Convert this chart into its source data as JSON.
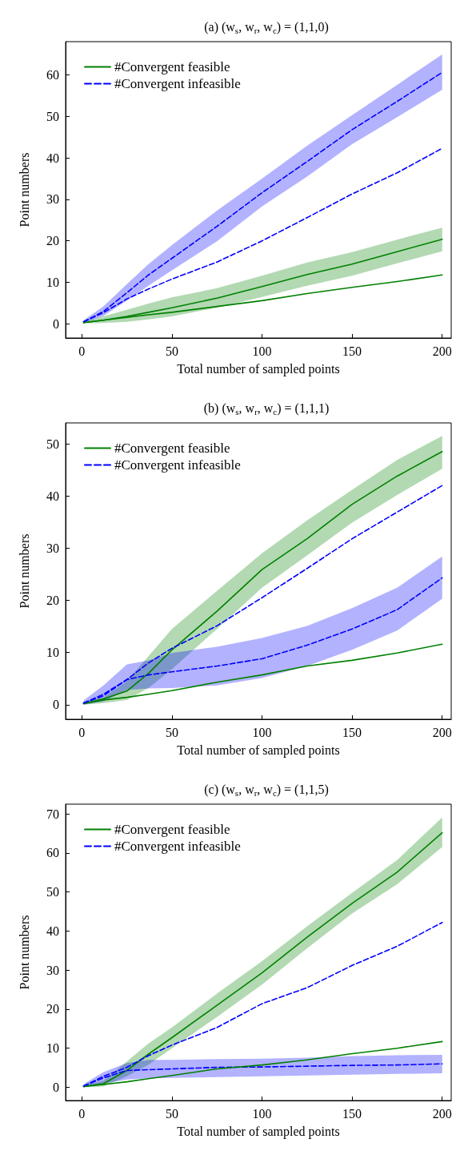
{
  "chart_data": [
    {
      "type": "line",
      "title": "(a) (w$_{s}$, w$_{r}$, w$_{c}$) = (1,1,0)",
      "xlabel": "Total number of sampled points",
      "ylabel": "Point numbers",
      "legend": "top left",
      "grid": false,
      "xlim": [
        -9,
        205
      ],
      "xticks": [
        0,
        50,
        100,
        150,
        200
      ],
      "ylim": [
        -3.4,
        68
      ],
      "yticks": [
        0,
        10,
        20,
        30,
        40,
        50,
        60
      ],
      "x": [
        1,
        12,
        25,
        37,
        50,
        75,
        100,
        125,
        150,
        175,
        200
      ],
      "series": [
        {
          "name": "#Convergent feasible",
          "color": "#008000",
          "line_style": "solid",
          "values": [
            0.3,
            0.9,
            1.8,
            2.8,
            3.9,
            6.2,
            9.0,
            11.9,
            14.4,
            17.4,
            20.4
          ],
          "lower": [
            0.1,
            0.2,
            0.5,
            1.1,
            1.8,
            3.9,
            6.5,
            9.2,
            11.6,
            14.6,
            17.5
          ],
          "upper": [
            0.6,
            1.8,
            3.4,
            4.9,
            6.4,
            8.6,
            11.6,
            14.8,
            17.3,
            20.3,
            23.2
          ]
        },
        {
          "name": "#Convergent infeasible",
          "color": "#0000ff",
          "line_style": "dashed",
          "values": [
            0.5,
            3.0,
            7.5,
            11.8,
            15.8,
            23.5,
            31.6,
            39.1,
            46.8,
            53.6,
            60.6
          ],
          "lower": [
            0.2,
            1.9,
            5.6,
            9.2,
            12.9,
            19.9,
            28.3,
            35.5,
            43.3,
            49.8,
            56.4
          ],
          "upper": [
            0.9,
            4.2,
            9.6,
            14.4,
            19.0,
            27.3,
            35.0,
            42.9,
            50.3,
            57.6,
            64.9
          ]
        },
        {
          "color": "#008000",
          "line_style": "solid",
          "values": [
            0.3,
            0.9,
            1.6,
            2.2,
            2.8,
            4.2,
            5.6,
            7.3,
            8.8,
            10.2,
            11.8
          ]
        },
        {
          "color": "#0000ff",
          "line_style": "dashed",
          "values": [
            0.5,
            2.7,
            6.0,
            8.4,
            10.8,
            14.9,
            20.0,
            25.6,
            31.3,
            36.4,
            42.3
          ]
        }
      ]
    },
    {
      "type": "line",
      "title": "(b) (w$_{s}$, w$_{r}$, w$_{c}$) = (1,1,1)",
      "xlabel": "Total number of sampled points",
      "ylabel": "Point numbers",
      "legend": "top left",
      "grid": false,
      "xlim": [
        -9,
        205
      ],
      "xticks": [
        0,
        50,
        100,
        150,
        200
      ],
      "ylim": [
        -2.8,
        54
      ],
      "yticks": [
        0,
        10,
        20,
        30,
        40,
        50
      ],
      "x": [
        1,
        12,
        25,
        37,
        50,
        75,
        100,
        125,
        150,
        175,
        200
      ],
      "series": [
        {
          "name": "#Convergent feasible",
          "color": "#008000",
          "line_style": "solid",
          "values": [
            0.2,
            1.1,
            2.6,
            6.0,
            10.5,
            17.9,
            25.9,
            31.8,
            38.4,
            43.8,
            48.5
          ],
          "lower": [
            0.0,
            0.3,
            0.9,
            3.2,
            6.8,
            14.5,
            22.4,
            28.6,
            34.9,
            40.2,
            45.2
          ],
          "upper": [
            0.5,
            1.4,
            4.5,
            9.3,
            14.5,
            21.8,
            29.0,
            35.3,
            41.2,
            46.9,
            51.5
          ]
        },
        {
          "name": "#Convergent infeasible",
          "color": "#0000ff",
          "line_style": "dashed",
          "values": [
            0.3,
            2.0,
            4.8,
            5.7,
            6.3,
            7.4,
            8.8,
            11.4,
            14.5,
            18.2,
            24.3
          ],
          "lower": [
            0.0,
            0.6,
            2.8,
            3.1,
            3.2,
            3.7,
            5.1,
            7.4,
            10.5,
            14.2,
            20.3
          ],
          "upper": [
            0.8,
            3.7,
            7.7,
            8.5,
            9.9,
            11.1,
            12.8,
            15.1,
            18.5,
            22.4,
            28.4
          ]
        },
        {
          "color": "#008000",
          "line_style": "solid",
          "values": [
            0.2,
            0.9,
            1.4,
            2.0,
            2.7,
            4.3,
            5.7,
            7.4,
            8.5,
            9.9,
            11.6
          ]
        },
        {
          "color": "#0000ff",
          "line_style": "dashed",
          "values": [
            0.3,
            1.7,
            4.8,
            8.0,
            10.8,
            15.1,
            20.5,
            26.1,
            31.8,
            36.9,
            42.0
          ]
        }
      ]
    },
    {
      "type": "line",
      "title": "(c) (w$_{s}$, w$_{r}$, w$_{c}$) = (1,1,5)",
      "xlabel": "Total number of sampled points",
      "ylabel": "Point numbers",
      "legend": "top left",
      "grid": false,
      "xlim": [
        -9,
        205
      ],
      "xticks": [
        0,
        50,
        100,
        150,
        200
      ],
      "ylim": [
        -3.4,
        72.5
      ],
      "yticks": [
        0,
        10,
        20,
        30,
        40,
        50,
        60,
        70
      ],
      "x": [
        1,
        12,
        25,
        37,
        50,
        75,
        100,
        125,
        150,
        175,
        200
      ],
      "series": [
        {
          "name": "#Convergent feasible",
          "color": "#008000",
          "line_style": "solid",
          "values": [
            0.2,
            0.9,
            4.3,
            8.5,
            12.7,
            21.0,
            29.3,
            38.4,
            47.1,
            55.1,
            65.2
          ],
          "lower": [
            0.0,
            0.2,
            2.8,
            5.8,
            10.0,
            18.0,
            26.3,
            35.6,
            44.5,
            52.0,
            61.5
          ],
          "upper": [
            0.5,
            1.7,
            6.6,
            11.2,
            15.3,
            24.0,
            32.3,
            41.2,
            49.8,
            58.2,
            69.1
          ]
        },
        {
          "name": "#Convergent infeasible",
          "color": "#0000ff",
          "line_style": "dashed",
          "values": [
            0.3,
            2.4,
            4.3,
            4.5,
            4.7,
            5.1,
            5.2,
            5.4,
            5.6,
            5.7,
            6.0
          ],
          "lower": [
            0.0,
            0.9,
            2.0,
            2.3,
            2.4,
            2.6,
            2.8,
            3.0,
            3.2,
            3.4,
            3.6
          ],
          "upper": [
            0.8,
            3.9,
            6.2,
            7.0,
            7.0,
            7.2,
            7.3,
            7.6,
            8.0,
            8.2,
            8.3
          ]
        },
        {
          "color": "#008000",
          "line_style": "solid",
          "values": [
            0.2,
            0.7,
            1.4,
            2.2,
            3.0,
            4.7,
            5.7,
            7.0,
            8.6,
            10.0,
            11.7
          ]
        },
        {
          "color": "#0000ff",
          "line_style": "dashed",
          "values": [
            0.3,
            2.8,
            5.1,
            8.1,
            10.8,
            15.3,
            21.4,
            25.5,
            31.2,
            36.1,
            42.2
          ]
        }
      ]
    }
  ]
}
